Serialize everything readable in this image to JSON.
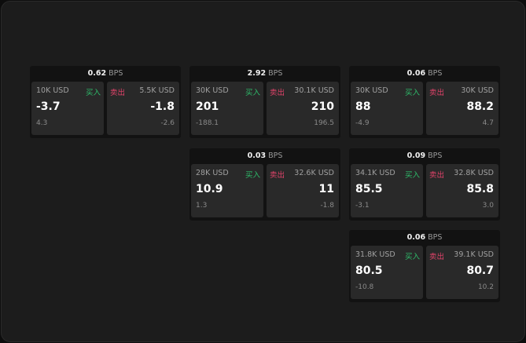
{
  "unit": "BPS",
  "buy_label": "买入",
  "sell_label": "卖出",
  "colors": {
    "buy": "#2ebd6b",
    "sell": "#e2436a"
  },
  "widgets": [
    {
      "spread": "0.62",
      "bid_qty": "10K USD",
      "bid": "-3.7",
      "bid_sub": "4.3",
      "ask_qty": "5.5K USD",
      "ask": "-1.8",
      "ask_sub": "-2.6"
    },
    {
      "spread": "2.92",
      "bid_qty": "30K USD",
      "bid": "201",
      "bid_sub": "-188.1",
      "ask_qty": "30.1K USD",
      "ask": "210",
      "ask_sub": "196.5"
    },
    {
      "spread": "0.06",
      "bid_qty": "30K USD",
      "bid": "88",
      "bid_sub": "-4.9",
      "ask_qty": "30K USD",
      "ask": "88.2",
      "ask_sub": "4.7"
    },
    {
      "spread": "0.03",
      "bid_qty": "28K USD",
      "bid": "10.9",
      "bid_sub": "1.3",
      "ask_qty": "32.6K USD",
      "ask": "11",
      "ask_sub": "-1.8"
    },
    {
      "spread": "0.09",
      "bid_qty": "34.1K USD",
      "bid": "85.5",
      "bid_sub": "-3.1",
      "ask_qty": "32.8K USD",
      "ask": "85.8",
      "ask_sub": "3.0"
    },
    {
      "spread": "0.06",
      "bid_qty": "31.8K USD",
      "bid": "80.5",
      "bid_sub": "-10.8",
      "ask_qty": "39.1K USD",
      "ask": "80.7",
      "ask_sub": "10.2"
    }
  ]
}
